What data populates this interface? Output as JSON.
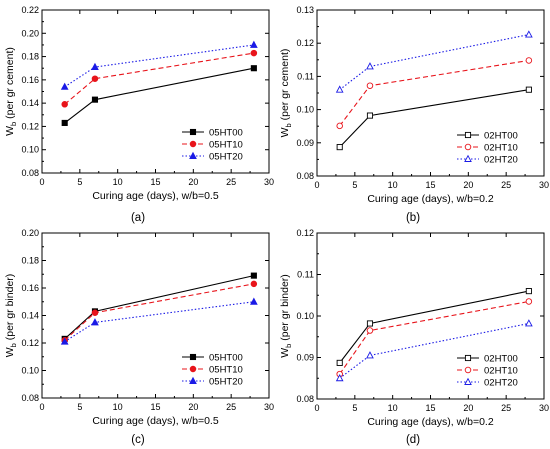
{
  "chart_data": [
    {
      "type": "line",
      "panel_label": "(a)",
      "xlabel": "Curing age (days), w/b=0.5",
      "ylabel_main": "W",
      "ylabel_sub": "b",
      "ylabel_rest": " (per gr cement)",
      "xlim": [
        0,
        30
      ],
      "ylim": [
        0.08,
        0.22
      ],
      "xticks": [
        0,
        5,
        10,
        15,
        20,
        25,
        30
      ],
      "yticks": [
        0.08,
        0.1,
        0.12,
        0.14,
        0.16,
        0.18,
        0.2,
        0.22
      ],
      "ytick_labels": [
        "0.08",
        "0.10",
        "0.12",
        "0.14",
        "0.16",
        "0.18",
        "0.20",
        "0.22"
      ],
      "legend_position": "bottom-right",
      "series": [
        {
          "name": "05HT00",
          "color": "#000000",
          "dash": "solid",
          "marker": "square",
          "filled": true,
          "x": [
            3,
            7,
            28
          ],
          "y": [
            0.123,
            0.143,
            0.17
          ]
        },
        {
          "name": "05HT10",
          "color": "#e8141b",
          "dash": "dashed",
          "marker": "circle",
          "filled": true,
          "x": [
            3,
            7,
            28
          ],
          "y": [
            0.139,
            0.161,
            0.183
          ]
        },
        {
          "name": "05HT20",
          "color": "#1a1ae6",
          "dash": "dotted",
          "marker": "triangle",
          "filled": true,
          "x": [
            3,
            7,
            28
          ],
          "y": [
            0.154,
            0.171,
            0.19
          ]
        }
      ]
    },
    {
      "type": "line",
      "panel_label": "(b)",
      "xlabel": "Curing age (days), w/b=0.2",
      "ylabel_main": "W",
      "ylabel_sub": "b",
      "ylabel_rest": " (per gr cement)",
      "xlim": [
        0,
        30
      ],
      "ylim": [
        0.08,
        0.13
      ],
      "xticks": [
        0,
        5,
        10,
        15,
        20,
        25,
        30
      ],
      "yticks": [
        0.08,
        0.09,
        0.1,
        0.11,
        0.12,
        0.13
      ],
      "ytick_labels": [
        "0.08",
        "0.09",
        "0.10",
        "0.11",
        "0.12",
        "0.13"
      ],
      "legend_position": "bottom-right",
      "series": [
        {
          "name": "02HT00",
          "color": "#000000",
          "dash": "solid",
          "marker": "square",
          "filled": false,
          "x": [
            3,
            7,
            28
          ],
          "y": [
            0.0887,
            0.0982,
            0.106
          ]
        },
        {
          "name": "02HT10",
          "color": "#e8141b",
          "dash": "dashed",
          "marker": "circle",
          "filled": false,
          "x": [
            3,
            7,
            28
          ],
          "y": [
            0.0951,
            0.1072,
            0.1148
          ]
        },
        {
          "name": "02HT20",
          "color": "#1a1ae6",
          "dash": "dotted",
          "marker": "triangle",
          "filled": false,
          "x": [
            3,
            7,
            28
          ],
          "y": [
            0.106,
            0.113,
            0.1226
          ]
        }
      ]
    },
    {
      "type": "line",
      "panel_label": "(c)",
      "xlabel": "Curing age (days), w/b=0.5",
      "ylabel_main": "W",
      "ylabel_sub": "b",
      "ylabel_rest": " (per gr binder)",
      "xlim": [
        0,
        30
      ],
      "ylim": [
        0.08,
        0.2
      ],
      "xticks": [
        0,
        5,
        10,
        15,
        20,
        25,
        30
      ],
      "yticks": [
        0.08,
        0.1,
        0.12,
        0.14,
        0.16,
        0.18,
        0.2
      ],
      "ytick_labels": [
        "0.08",
        "0.10",
        "0.12",
        "0.14",
        "0.16",
        "0.18",
        "0.20"
      ],
      "legend_position": "bottom-right",
      "series": [
        {
          "name": "05HT00",
          "color": "#000000",
          "dash": "solid",
          "marker": "square",
          "filled": true,
          "x": [
            3,
            7,
            28
          ],
          "y": [
            0.123,
            0.143,
            0.169
          ]
        },
        {
          "name": "05HT10",
          "color": "#e8141b",
          "dash": "dashed",
          "marker": "circle",
          "filled": true,
          "x": [
            3,
            7,
            28
          ],
          "y": [
            0.122,
            0.142,
            0.163
          ]
        },
        {
          "name": "05HT20",
          "color": "#1a1ae6",
          "dash": "dotted",
          "marker": "triangle",
          "filled": true,
          "x": [
            3,
            7,
            28
          ],
          "y": [
            0.121,
            0.135,
            0.15
          ]
        }
      ]
    },
    {
      "type": "line",
      "panel_label": "(d)",
      "xlabel": "Curing age (days), w/b=0.2",
      "ylabel_main": "W",
      "ylabel_sub": "b",
      "ylabel_rest": " (per gr binder)",
      "xlim": [
        0,
        30
      ],
      "ylim": [
        0.08,
        0.12
      ],
      "xticks": [
        0,
        5,
        10,
        15,
        20,
        25,
        30
      ],
      "yticks": [
        0.08,
        0.09,
        0.1,
        0.11,
        0.12
      ],
      "ytick_labels": [
        "0.08",
        "0.09",
        "0.10",
        "0.11",
        "0.12"
      ],
      "legend_position": "bottom-right",
      "series": [
        {
          "name": "02HT00",
          "color": "#000000",
          "dash": "solid",
          "marker": "square",
          "filled": false,
          "x": [
            3,
            7,
            28
          ],
          "y": [
            0.0887,
            0.0982,
            0.106
          ]
        },
        {
          "name": "02HT10",
          "color": "#e8141b",
          "dash": "dashed",
          "marker": "circle",
          "filled": false,
          "x": [
            3,
            7,
            28
          ],
          "y": [
            0.086,
            0.0965,
            0.1035
          ]
        },
        {
          "name": "02HT20",
          "color": "#1a1ae6",
          "dash": "dotted",
          "marker": "triangle",
          "filled": false,
          "x": [
            3,
            7,
            28
          ],
          "y": [
            0.085,
            0.0905,
            0.0982
          ]
        }
      ]
    }
  ]
}
